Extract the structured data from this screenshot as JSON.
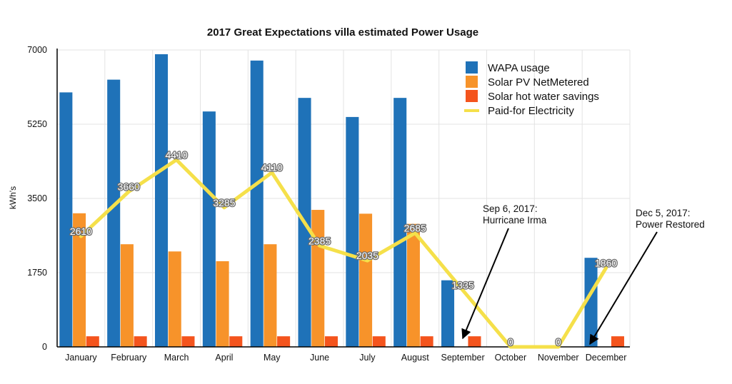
{
  "chart_data": {
    "type": "bar",
    "title": "2017 Great Expectations villa estimated Power Usage",
    "ylabel": "kWh's",
    "xlabel": "",
    "ylim": [
      0,
      7000
    ],
    "yticks": [
      0,
      1750,
      3500,
      5250,
      7000
    ],
    "grid": true,
    "legend_position": "top-right",
    "categories": [
      "January",
      "February",
      "March",
      "April",
      "May",
      "June",
      "July",
      "August",
      "September",
      "October",
      "November",
      "December"
    ],
    "series": [
      {
        "name": "WAPA usage",
        "type": "bar",
        "color": "#1f72b8",
        "values": [
          6000,
          6300,
          6900,
          5550,
          6750,
          5870,
          5420,
          5870,
          1570,
          null,
          null,
          2100
        ]
      },
      {
        "name": "Solar PV NetMetered",
        "type": "bar",
        "color": "#f7932a",
        "values": [
          3150,
          2420,
          2250,
          2020,
          2420,
          3230,
          3140,
          2900,
          null,
          null,
          null,
          null
        ]
      },
      {
        "name": "Solar hot water savings",
        "type": "bar",
        "color": "#f4541d",
        "values": [
          250,
          250,
          250,
          250,
          250,
          250,
          250,
          250,
          250,
          null,
          null,
          250
        ]
      },
      {
        "name": "Paid-for Electricity",
        "type": "line",
        "color": "#f5e04a",
        "values": [
          2610,
          3660,
          4410,
          3285,
          4110,
          2385,
          2035,
          2685,
          1335,
          0,
          0,
          1860
        ],
        "labels": [
          "2610",
          "3660",
          "4410",
          "3285",
          "4110",
          "2385",
          "2035",
          "2685",
          "1335",
          "0",
          "0",
          "1860"
        ]
      }
    ],
    "annotations": [
      {
        "lines": [
          "Sep 6, 2017:",
          "Hurricane Irma"
        ],
        "target_category": "September",
        "target_value": 0
      },
      {
        "lines": [
          "Dec 5, 2017:",
          "Power Restored"
        ],
        "target_category": "December",
        "target_value": 0
      }
    ]
  }
}
